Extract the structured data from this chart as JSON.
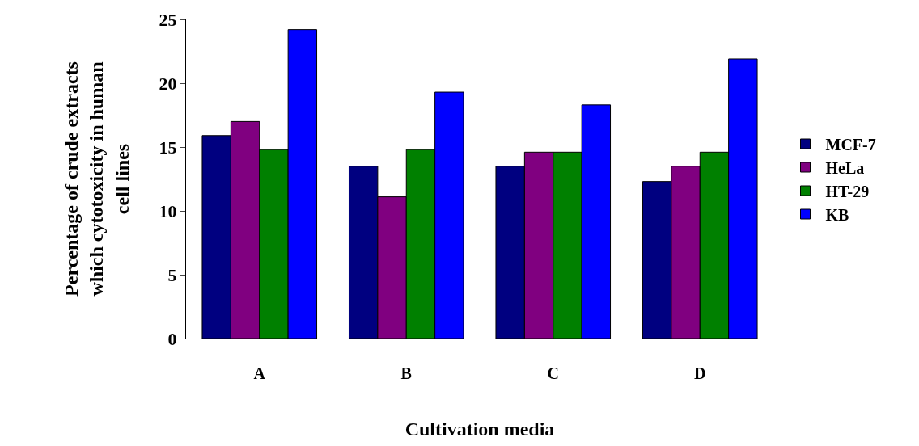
{
  "chart_data": {
    "type": "bar",
    "xlabel": "Cultivation media",
    "ylabel": "Percentage of crude extracts which cytotoxicity in human cell lines",
    "categories": [
      "A",
      "B",
      "C",
      "D"
    ],
    "series": [
      {
        "name": "MCF-7",
        "color": "#000080",
        "values": [
          15.9,
          13.5,
          13.5,
          12.3
        ]
      },
      {
        "name": "HeLa",
        "color": "#800080",
        "values": [
          17.0,
          11.1,
          14.6,
          13.5
        ]
      },
      {
        "name": "HT-29",
        "color": "#008000",
        "values": [
          14.8,
          14.8,
          14.6,
          14.6
        ]
      },
      {
        "name": "KB",
        "color": "#0000ff",
        "values": [
          24.2,
          19.3,
          18.3,
          21.9
        ]
      }
    ],
    "ylim": [
      0,
      25
    ],
    "yticks": [
      0,
      5,
      10,
      15,
      20,
      25
    ],
    "grid": false,
    "legend": "right"
  }
}
